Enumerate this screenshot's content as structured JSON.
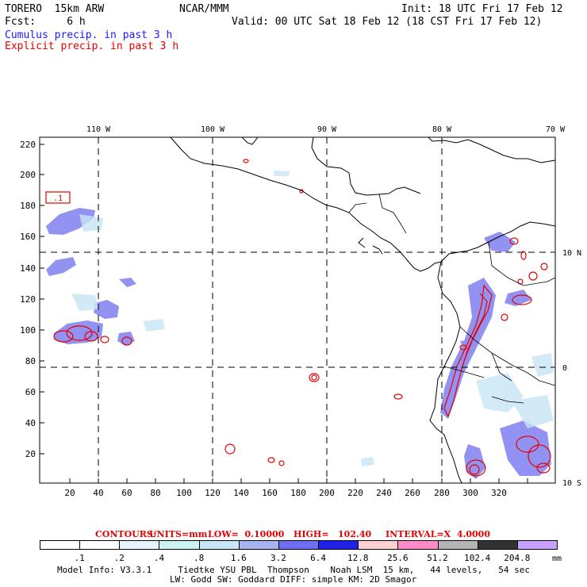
{
  "header": {
    "model": "TORERO  15km ARW",
    "org": "NCAR/MMM",
    "init": "Init: 18 UTC Fri 17 Feb 12",
    "fcst": "Fcst:     6 h",
    "valid": "Valid: 00 UTC Sat 18 Feb 12 (18 CST Fri 17 Feb 12)",
    "legend_cumulus": "Cumulus precip. in past 3 h",
    "legend_explicit": "Explicit precip. in past 3 h"
  },
  "colors": {
    "cumulus": "#1a1aff",
    "explicit": "#e60000"
  },
  "map": {
    "lon_labels": [
      "110 W",
      "100 W",
      "90 W",
      "80 W",
      "70 W"
    ],
    "lat_labels": [
      "10 N",
      "0",
      "10 S"
    ],
    "x_ticks": [
      "20",
      "40",
      "60",
      "80",
      "100",
      "120",
      "140",
      "160",
      "180",
      "200",
      "220",
      "240",
      "260",
      "280",
      "300",
      "320"
    ],
    "y_ticks": [
      "220",
      "200",
      "180",
      "160",
      "140",
      "120",
      "100",
      "80",
      "60",
      "40",
      "20"
    ],
    "contour_label": ".1"
  },
  "contours_line": {
    "contours": "CONTOURS:",
    "units": "UNITS=mm",
    "low": "LOW=  0.10000",
    "high": "HIGH=   102.40",
    "interval": "INTERVAL=X  4.0000"
  },
  "colorbar": {
    "levels": [
      ".1",
      ".2",
      ".4",
      ".8",
      "1.6",
      "3.2",
      "6.4",
      "12.8",
      "25.6",
      "51.2",
      "102.4",
      "204.8"
    ],
    "colors": [
      "#ffffff",
      "#ffffff",
      "#e6f2ff",
      "#ccf2f2",
      "#c8e6f5",
      "#a8b4f0",
      "#6e6ef0",
      "#2020e6",
      "#ffd2d2",
      "#ff8cc8",
      "#b4b4b4",
      "#323232",
      "#c8a0ff"
    ],
    "unit": "mm"
  },
  "footer": {
    "line1": "Model Info: V3.3.1     Tiedtke YSU PBL  Thompson    Noah LSM  15 km,   44 levels,   54 sec",
    "line2": "LW: Godd SW: Goddard DIFF: simple KM: 2D Smagor"
  }
}
